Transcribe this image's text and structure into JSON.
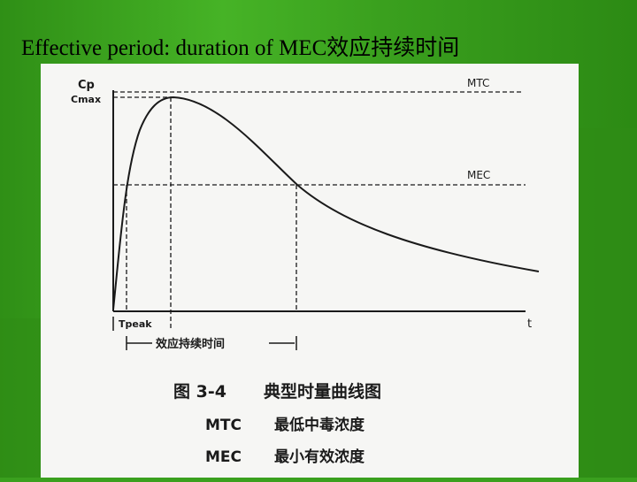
{
  "slide": {
    "title": "Effective period: duration of MEC效应持续时间",
    "colors": {
      "background": "#3aa01e",
      "panel": "#f6f6f4",
      "ink": "#1a1a1a"
    }
  },
  "figure": {
    "y_axis_label": "Cp",
    "cmax_label": "Cmax",
    "mtc_label": "MTC",
    "mec_label": "MEC",
    "x_axis_label": "t",
    "tpeak_label": "Tpeak",
    "duration_label": "效应持续时间",
    "caption_number": "图 3-4",
    "caption_title": "典型时量曲线图",
    "legend": [
      {
        "abbr": "MTC",
        "meaning": "最低中毒浓度"
      },
      {
        "abbr": "MEC",
        "meaning": "最小有效浓度"
      }
    ]
  }
}
